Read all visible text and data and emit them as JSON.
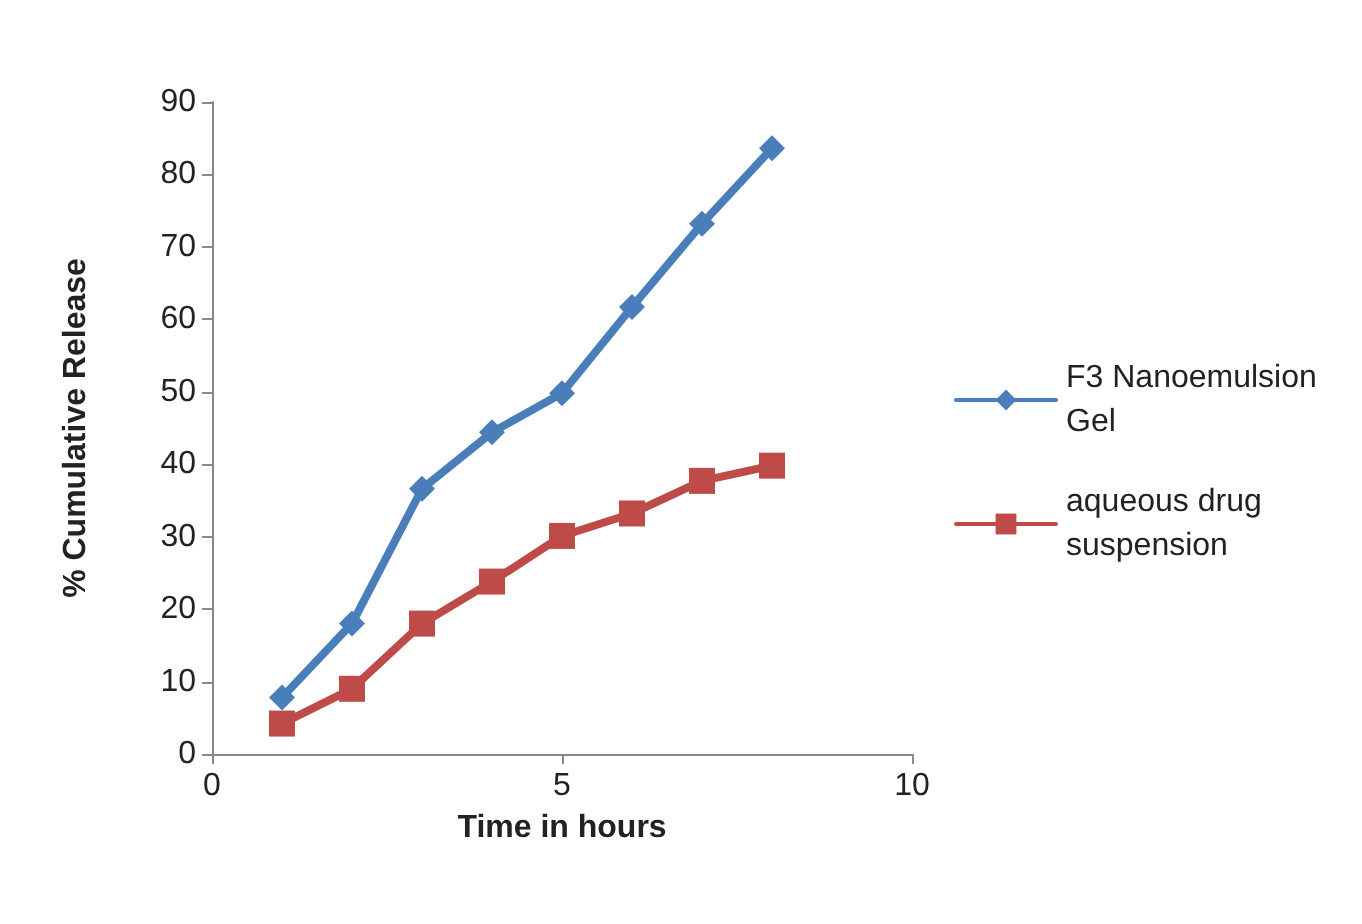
{
  "chart_data": {
    "type": "line",
    "xlabel": "Time in hours",
    "ylabel": "% Cumulative Release",
    "x": [
      1,
      2,
      3,
      4,
      5,
      6,
      7,
      8
    ],
    "series": [
      {
        "name": "F3 Nanoemulsion Gel",
        "color": "#4a7ebb",
        "marker": "diamond",
        "values": [
          7.8,
          18.0,
          36.6,
          44.4,
          49.8,
          61.7,
          73.2,
          83.6
        ]
      },
      {
        "name": "aqueous drug suspension",
        "color": "#be4b48",
        "marker": "square",
        "values": [
          4.2,
          9.0,
          18.0,
          23.8,
          30.1,
          33.2,
          37.7,
          39.8
        ]
      }
    ],
    "xlim": [
      0,
      10
    ],
    "xticks": [
      0,
      5,
      10
    ],
    "ylim": [
      0,
      90
    ],
    "yticks": [
      0,
      10,
      20,
      30,
      40,
      50,
      60,
      70,
      80,
      90
    ],
    "grid": false,
    "legend": "right",
    "line_style": "solid"
  }
}
